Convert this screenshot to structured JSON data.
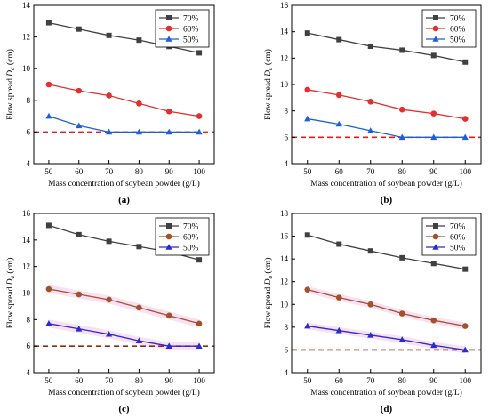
{
  "figure": {
    "panels": [
      {
        "label": "(a)"
      },
      {
        "label": "(b)"
      },
      {
        "label": "(c)"
      },
      {
        "label": "(d)"
      }
    ]
  },
  "colors": {
    "70%": "#404040",
    "60%": "#e03030",
    "50%": "#1f5fd6",
    "60%_c_d": "#a0522d",
    "50%_c_d": "#2a2ad0",
    "reference_line_ab": "#e02020",
    "reference_line_cd": "#8b2d10",
    "band": "#f4c6e8"
  },
  "chart_data": [
    {
      "type": "line",
      "panel": "(a)",
      "xlabel": "Mass concentration of soybean powder (g/L)",
      "ylabel": "Flow spread D_a (cm)",
      "x": [
        50,
        60,
        70,
        80,
        90,
        100
      ],
      "xticks": [
        "50",
        "60",
        "70",
        "80",
        "90",
        "100"
      ],
      "yticks": [
        "4",
        "6",
        "8",
        "10",
        "12",
        "14"
      ],
      "ylim": [
        4,
        14
      ],
      "legend_position": "top-right",
      "series": [
        {
          "name": "70%",
          "marker": "square",
          "values": [
            12.9,
            12.5,
            12.1,
            11.8,
            11.4,
            11.0
          ]
        },
        {
          "name": "60%",
          "marker": "circle",
          "values": [
            9.0,
            8.6,
            8.3,
            7.8,
            7.3,
            7.0
          ]
        },
        {
          "name": "50%",
          "marker": "triangle",
          "values": [
            7.0,
            6.4,
            6.0,
            6.0,
            6.0,
            6.0
          ]
        }
      ],
      "reference_line": {
        "y": 6,
        "style": "dashed"
      }
    },
    {
      "type": "line",
      "panel": "(b)",
      "xlabel": "Mass concentration of soybean powder (g/L)",
      "ylabel": "Flow spread D_a (cm)",
      "x": [
        50,
        60,
        70,
        80,
        90,
        100
      ],
      "xticks": [
        "50",
        "60",
        "70",
        "80",
        "90",
        "100"
      ],
      "yticks": [
        "4",
        "6",
        "8",
        "10",
        "12",
        "14",
        "16"
      ],
      "ylim": [
        4,
        16
      ],
      "legend_position": "top-right",
      "series": [
        {
          "name": "70%",
          "marker": "square",
          "values": [
            13.9,
            13.4,
            12.9,
            12.6,
            12.2,
            11.7
          ]
        },
        {
          "name": "60%",
          "marker": "circle",
          "values": [
            9.6,
            9.2,
            8.7,
            8.1,
            7.8,
            7.4
          ]
        },
        {
          "name": "50%",
          "marker": "triangle",
          "values": [
            7.4,
            7.0,
            6.5,
            6.0,
            6.0,
            6.0
          ]
        }
      ],
      "reference_line": {
        "y": 6,
        "style": "dashed"
      }
    },
    {
      "type": "line",
      "panel": "(c)",
      "xlabel": "Mass concentration of soybean powder (g/L)",
      "ylabel": "Flow spread D_a (cm)",
      "x": [
        50,
        60,
        70,
        80,
        90,
        100
      ],
      "xticks": [
        "50",
        "60",
        "70",
        "80",
        "90",
        "100"
      ],
      "yticks": [
        "4",
        "6",
        "8",
        "10",
        "12",
        "14",
        "16"
      ],
      "ylim": [
        4,
        16
      ],
      "legend_position": "top-right",
      "series": [
        {
          "name": "70%",
          "marker": "square",
          "values": [
            15.1,
            14.4,
            13.9,
            13.5,
            13.1,
            12.5
          ]
        },
        {
          "name": "60%",
          "marker": "circle",
          "values": [
            10.3,
            9.9,
            9.5,
            8.9,
            8.3,
            7.7
          ]
        },
        {
          "name": "50%",
          "marker": "triangle",
          "values": [
            7.7,
            7.3,
            6.9,
            6.4,
            6.0,
            6.0
          ]
        }
      ],
      "reference_line": {
        "y": 6,
        "style": "dashed"
      }
    },
    {
      "type": "line",
      "panel": "(d)",
      "xlabel": "Mass concentration of soybean powder (g/L)",
      "ylabel": "Flow spread D_a (cm)",
      "x": [
        50,
        60,
        70,
        80,
        90,
        100
      ],
      "xticks": [
        "50",
        "60",
        "70",
        "80",
        "90",
        "100"
      ],
      "yticks": [
        "4",
        "6",
        "8",
        "10",
        "12",
        "14",
        "16",
        "18"
      ],
      "ylim": [
        4,
        18
      ],
      "legend_position": "top-right",
      "series": [
        {
          "name": "70%",
          "marker": "square",
          "values": [
            16.1,
            15.3,
            14.7,
            14.1,
            13.6,
            13.1
          ]
        },
        {
          "name": "60%",
          "marker": "circle",
          "values": [
            11.3,
            10.6,
            10.0,
            9.2,
            8.6,
            8.1
          ]
        },
        {
          "name": "50%",
          "marker": "triangle",
          "values": [
            8.1,
            7.7,
            7.3,
            6.9,
            6.4,
            6.0
          ]
        }
      ],
      "reference_line": {
        "y": 6,
        "style": "dashed"
      }
    }
  ]
}
